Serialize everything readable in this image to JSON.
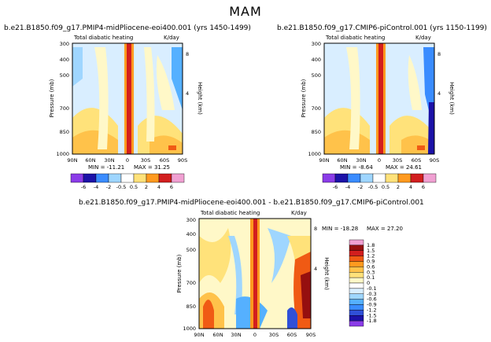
{
  "figure": {
    "title": "MAM"
  },
  "colors": {
    "palette": [
      "#8b3ce8",
      "#1c12a8",
      "#3050d8",
      "#3a8cff",
      "#55b0ff",
      "#9fd6ff",
      "#d9eeff",
      "#ffffff",
      "#fff8c8",
      "#ffe27a",
      "#ffc24a",
      "#ff9a1f",
      "#f05a14",
      "#d21e1e",
      "#960f0f",
      "#f0a0d2"
    ]
  },
  "chart_data": [
    {
      "type": "heatmap",
      "id": "top-left",
      "title": "b.e21.B1850.f09_g17.PMIP4-midPliocene-eoi400.001 (yrs 1450-1499)",
      "subtitle": "Total diabatic heating",
      "units": "K/day",
      "ylabel": "Pressure (mb)",
      "ylabel_right": "Height (km)",
      "x_ticks": [
        "90N",
        "60N",
        "30N",
        "0",
        "30S",
        "60S",
        "90S"
      ],
      "y_ticks": [
        "300",
        "400",
        "500",
        "700",
        "850",
        "1000"
      ],
      "right_ticks": [
        "8",
        "4"
      ],
      "min_label": "MIN = -11.21",
      "max_label": "MAX = 31.25",
      "min": -11.21,
      "max": 31.25,
      "colorbar": {
        "orientation": "horizontal",
        "levels": [
          "-6",
          "-4",
          "-2",
          "-0.5",
          "0.5",
          "2",
          "4",
          "6"
        ]
      }
    },
    {
      "type": "heatmap",
      "id": "top-right",
      "title": "b.e21.B1850.f09_g17.CMIP6-piControl.001 (yrs 1150-1199)",
      "subtitle": "Total diabatic heating",
      "units": "K/day",
      "ylabel": "Pressure (mb)",
      "ylabel_right": "Height (km)",
      "x_ticks": [
        "90N",
        "60N",
        "30N",
        "0",
        "30S",
        "60S",
        "90S"
      ],
      "y_ticks": [
        "300",
        "400",
        "500",
        "700",
        "850",
        "1000"
      ],
      "right_ticks": [
        "8",
        "4"
      ],
      "min_label": "MIN = -8.64",
      "max_label": "MAX = 24.61",
      "min": -8.64,
      "max": 24.61,
      "colorbar": {
        "orientation": "horizontal",
        "levels": [
          "-6",
          "-4",
          "-2",
          "-0.5",
          "0.5",
          "2",
          "4",
          "6"
        ]
      }
    },
    {
      "type": "heatmap",
      "id": "bottom-diff",
      "title": "b.e21.B1850.f09_g17.PMIP4-midPliocene-eoi400.001 - b.e21.B1850.f09_g17.CMIP6-piControl.001",
      "subtitle": "Total diabatic heating",
      "units": "K/day",
      "ylabel": "Pressure (mb)",
      "ylabel_right": "Height (km)",
      "x_ticks": [
        "90N",
        "60N",
        "30N",
        "0",
        "30S",
        "60S",
        "90S"
      ],
      "y_ticks": [
        "300",
        "400",
        "500",
        "700",
        "850",
        "1000"
      ],
      "right_ticks": [
        "8",
        "4"
      ],
      "min_label": "MIN = -18.28",
      "max_label": "MAX = 27.20",
      "min": -18.28,
      "max": 27.2,
      "colorbar": {
        "orientation": "vertical",
        "levels": [
          "1.8",
          "1.5",
          "1.2",
          "0.9",
          "0.6",
          "0.3",
          "0.1",
          "0",
          "-0.1",
          "-0.3",
          "-0.6",
          "-0.9",
          "-1.2",
          "-1.5",
          "-1.8"
        ]
      }
    }
  ]
}
